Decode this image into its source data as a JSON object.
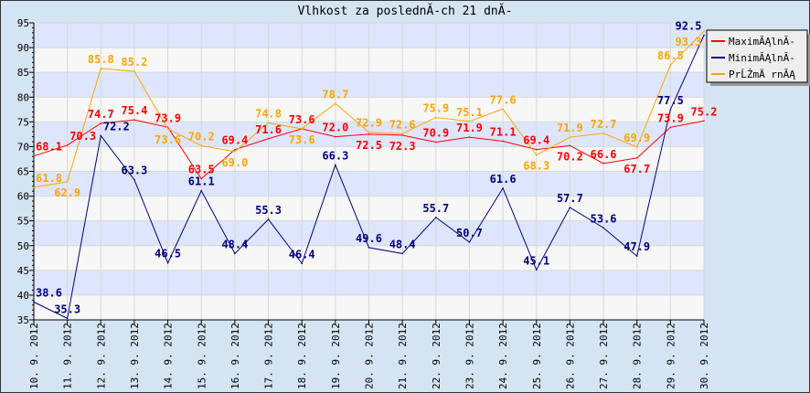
{
  "chart_data": {
    "type": "line",
    "title": "Vlhkost za poslednĂ-ch 21 dnĂ-",
    "xlabel": "",
    "ylabel": "",
    "ylim": [
      35,
      95
    ],
    "yticks": [
      35,
      40,
      45,
      50,
      55,
      60,
      65,
      70,
      75,
      80,
      85,
      90,
      95
    ],
    "grid": true,
    "legend_position": "top-right",
    "categories": [
      "10. 9. 2012",
      "11. 9. 2012",
      "12. 9. 2012",
      "13. 9. 2012",
      "14. 9. 2012",
      "15. 9. 2012",
      "16. 9. 2012",
      "17. 9. 2012",
      "18. 9. 2012",
      "19. 9. 2012",
      "20. 9. 2012",
      "21. 9. 2012",
      "22. 9. 2012",
      "23. 9. 2012",
      "24. 9. 2012",
      "25. 9. 2012",
      "26. 9. 2012",
      "27. 9. 2012",
      "28. 9. 2012",
      "29. 9. 2012",
      "30. 9. 2012"
    ],
    "series": [
      {
        "name": "MaximĂĄlnĂ-",
        "color": "#ff0000",
        "values": [
          68.1,
          70.3,
          74.7,
          75.4,
          73.9,
          63.5,
          69.4,
          71.6,
          73.6,
          72.0,
          72.5,
          72.3,
          70.9,
          71.9,
          71.1,
          69.4,
          70.2,
          66.6,
          67.7,
          73.9,
          75.2
        ]
      },
      {
        "name": "MinimĂĄlnĂ-",
        "color": "#000080",
        "values": [
          38.6,
          35.3,
          72.2,
          63.3,
          46.5,
          61.1,
          48.4,
          55.3,
          46.4,
          66.3,
          49.6,
          48.4,
          55.7,
          50.7,
          61.6,
          45.1,
          57.7,
          53.6,
          47.9,
          77.5,
          92.5
        ]
      },
      {
        "name": "PrĹŻmÄ rnĂĄ",
        "color": "#ffa500",
        "values": [
          61.8,
          62.9,
          85.8,
          85.2,
          73.6,
          70.2,
          69.0,
          74.8,
          73.6,
          78.7,
          72.9,
          72.6,
          75.9,
          75.1,
          77.6,
          68.3,
          71.9,
          72.7,
          69.9,
          86.5,
          93.3
        ]
      }
    ]
  }
}
